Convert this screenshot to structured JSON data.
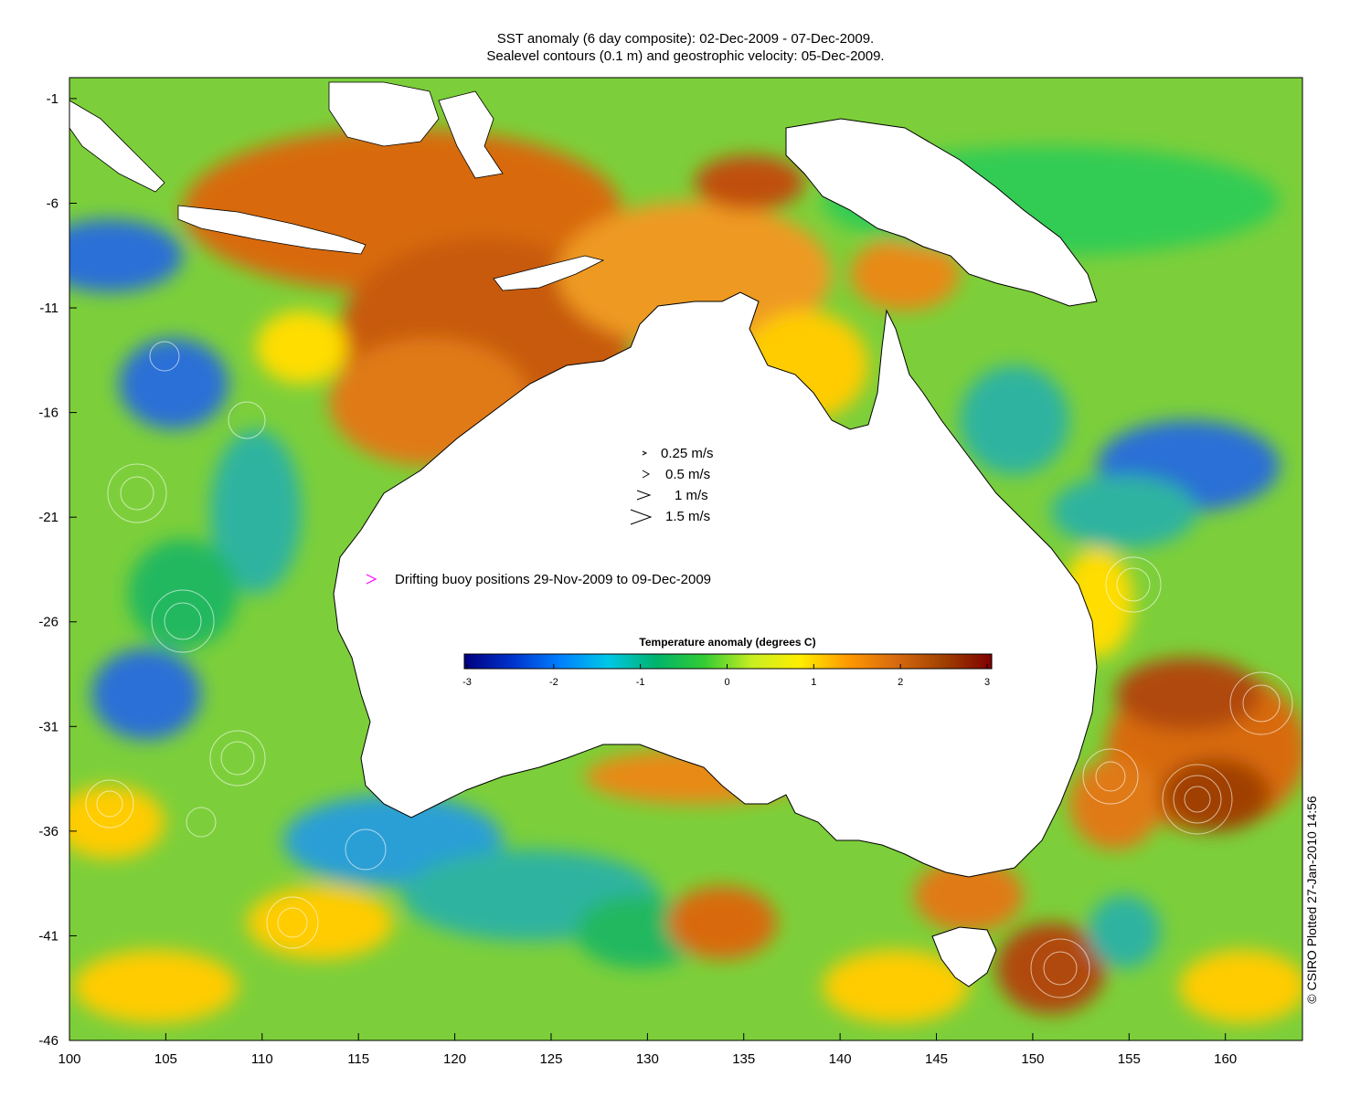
{
  "title_line1": "SST anomaly (6 day composite): 02-Dec-2009 - 07-Dec-2009.",
  "title_line2": "Sealevel contours (0.1 m) and geostrophic velocity: 05-Dec-2009.",
  "credit": "© CSIRO Plotted 27-Jan-2010 14:56",
  "velocity_legend": [
    "0.25 m/s",
    "0.5 m/s",
    "1 m/s",
    "1.5 m/s"
  ],
  "buoy_legend": "Drifting buoy positions 29-Nov-2009 to 09-Dec-2009",
  "colorbar": {
    "title": "Temperature anomaly (degrees C)",
    "ticks": [
      "-3",
      "-2",
      "-1",
      "0",
      "1",
      "2",
      "3"
    ],
    "colors": [
      "#00007f",
      "#0033cc",
      "#0080ff",
      "#00c8e6",
      "#00b36b",
      "#33cc33",
      "#c8ee22",
      "#ffee00",
      "#ff9900",
      "#d86a10",
      "#a04000",
      "#7f0000"
    ]
  },
  "axes": {
    "lon_ticks": [
      "100",
      "105",
      "110",
      "115",
      "120",
      "125",
      "130",
      "135",
      "140",
      "145",
      "150",
      "155",
      "160"
    ],
    "lat_ticks": [
      "-1",
      "-6",
      "-11",
      "-16",
      "-21",
      "-26",
      "-31",
      "-36",
      "-41",
      "-46"
    ],
    "lon_range": [
      100,
      164
    ],
    "lat_range": [
      -46,
      0
    ]
  },
  "colors": {
    "ocean_base": "#7ccf3a",
    "land": "#ffffff",
    "warm": "#e07a18",
    "hot": "#b04a10",
    "cool": "#2fb3a0",
    "cold": "#2a6fd6",
    "buoy": "#ff00ff"
  }
}
